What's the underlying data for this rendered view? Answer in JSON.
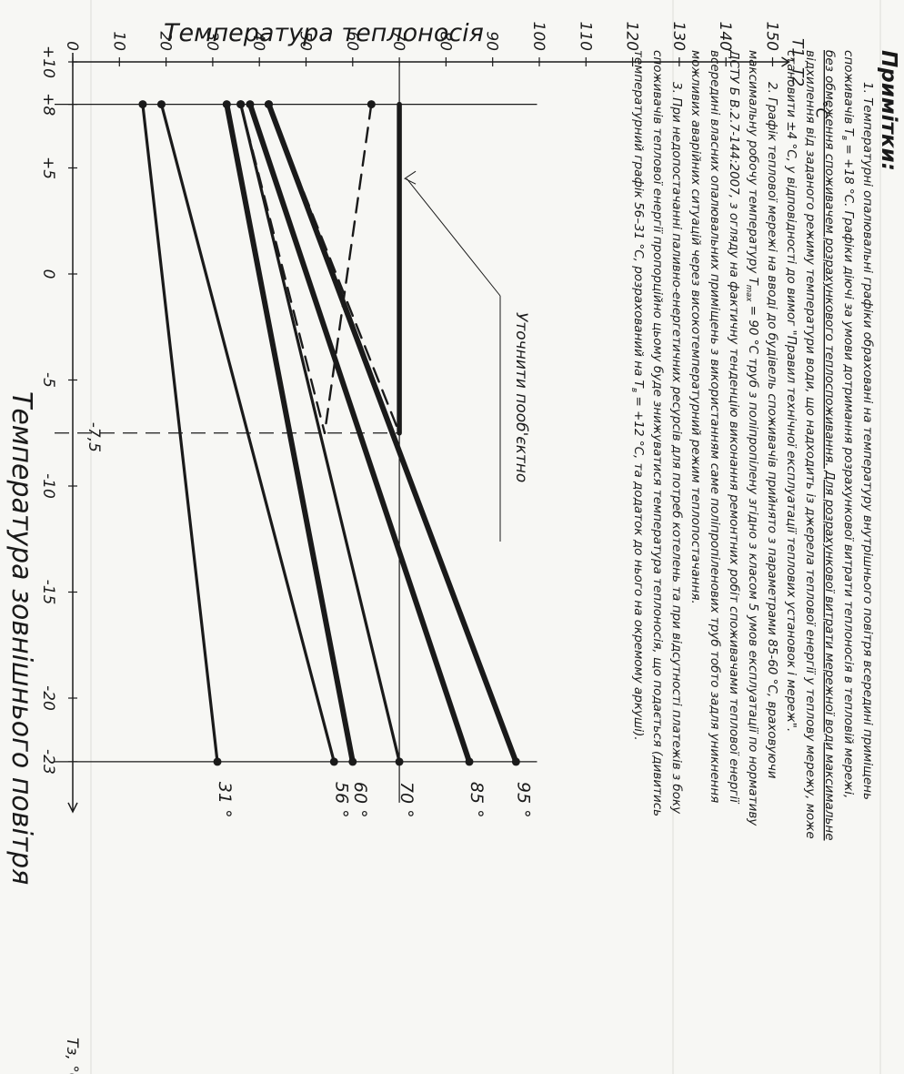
{
  "notes": {
    "title": "Примітки:",
    "paragraphs": [
      "1. Температурні опалювальні графіки обраховані на температуру внутрішнього повітря всередині приміщень",
      "споживачів Т",
      "в",
      " = +18 °С. Графіки діючі за умови дотримання розрахункової витрати теплоносія в тепловій мережі,",
      "без обмеження споживачем розрахункового теплоспоживання. Для розрахункової витрати мережної води максимальне",
      "відхилення від заданого режиму температури води, що надходить із джерела теплової енергії у теплову мережу, може",
      "становити ±4 °С, у відповідності до вимог \"Правил технічної експлуатації теплових установок і мереж\".",
      "2. Графік теплової мережі на вводі до будівель споживачів прийнято з параметрами 85-60 °С, враховуючи",
      "максимальну робочу температуру Т",
      "max",
      " = 90 °С труб з поліпропілену згідно з класом 5 умов експлуатації по нормативу",
      "ДСТУ Б В.2.7-144:2007, з огляду на фактичну тенденцію виконання ремонтних робіт споживачами теплової енергії",
      "всередині власних опалювальних приміщень з використанням саме поліпропіленових труб тобто задля уникнення",
      "можливих аварійних ситуацій через високотемпературний режим теплопостачання.",
      "3. При недопостачанні паливно-енергетичних ресурсів для потреб котелень та при відсутності платежів з боку",
      "споживачів теплової енергії пропорційно цьому буде знижуватися температура теплоносія, що подається (дивитись",
      "температурний графік 56–31 °С, розрахований на Т",
      "в",
      " = +12 °С, та додаток до нього на окремому аркуші)."
    ]
  },
  "annotation": "Уточнити пооб'єктно",
  "chart_data": {
    "type": "line",
    "title": "",
    "ylabel": "Температура теплоносія",
    "xlabel": "Температура зовнішнього повітря",
    "y_axis_unit_top": "°С",
    "y_axis_series_label": "Т1, Т2",
    "x_axis_unit": "Тз, °С",
    "xlim": [
      10,
      -23
    ],
    "ylim": [
      0,
      150
    ],
    "x_ticks": [
      10,
      8,
      5,
      0,
      -5,
      -10,
      -15,
      -20,
      -23
    ],
    "x_tick_labels": [
      "+10",
      "+8",
      "+5",
      "0",
      "-5",
      "-10",
      "-15",
      "-20",
      "-23"
    ],
    "y_ticks": [
      0,
      10,
      20,
      30,
      40,
      50,
      60,
      70,
      80,
      90,
      100,
      110,
      120,
      130,
      140,
      150
    ],
    "y_tick_labels": [
      "0",
      "10",
      "20",
      "30",
      "40",
      "50",
      "60",
      "70",
      "80",
      "90",
      "100",
      "110",
      "120",
      "130",
      "140",
      "150"
    ],
    "marker_x_label": "-7,5",
    "marker_x": -7.5,
    "series": [
      {
        "x": [
          8,
          -23
        ],
        "y": [
          42,
          95
        ],
        "style": "thick",
        "end_label": "95 °"
      },
      {
        "x": [
          8,
          -23
        ],
        "y": [
          38,
          85
        ],
        "style": "thick",
        "end_label": "85 °"
      },
      {
        "x": [
          8,
          -23
        ],
        "y": [
          36,
          70
        ],
        "style": "medium",
        "end_label": "70 °"
      },
      {
        "x": [
          8,
          -23
        ],
        "y": [
          33,
          60
        ],
        "style": "thick",
        "end_label": "60 °"
      },
      {
        "x": [
          8,
          -23
        ],
        "y": [
          19,
          56
        ],
        "style": "medium",
        "end_label": "56 °"
      },
      {
        "x": [
          8,
          -23
        ],
        "y": [
          15,
          31
        ],
        "style": "medium",
        "end_label": "31 °"
      },
      {
        "x": [
          8,
          -7.5
        ],
        "y": [
          70,
          70
        ],
        "style": "flat",
        "end_label": ""
      },
      {
        "x": [
          8,
          -7.5
        ],
        "y": [
          64,
          54
        ],
        "style": "dashed",
        "end_label": ""
      },
      {
        "x": [
          8,
          -7.5
        ],
        "y": [
          42,
          70
        ],
        "style": "dashed",
        "end_label": ""
      },
      {
        "x": [
          8,
          -7.5
        ],
        "y": [
          36,
          54
        ],
        "style": "dashed",
        "end_label": ""
      }
    ]
  }
}
